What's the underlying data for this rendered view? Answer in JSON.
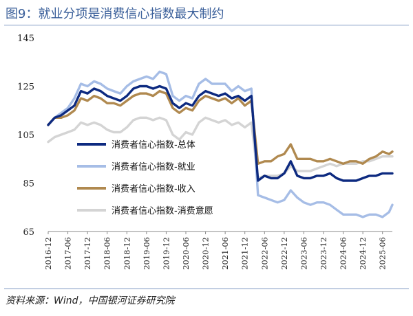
{
  "title": "图9：就业分项是消费信心指数最大制约",
  "source": "资料来源：Wind，中国银河证券研究院",
  "chart_data": {
    "type": "line",
    "ylim": [
      65,
      145
    ],
    "yticks": [
      65,
      85,
      105,
      125,
      145
    ],
    "xlim": [
      "2016-12",
      "2025-09"
    ],
    "xticks": [
      "2016-12",
      "2017-06",
      "2017-12",
      "2018-06",
      "2018-12",
      "2019-06",
      "2019-12",
      "2020-06",
      "2020-12",
      "2021-06",
      "2021-12",
      "2022-06",
      "2022-12",
      "2023-06",
      "2023-12",
      "2024-06",
      "2024-12",
      "2025-06"
    ],
    "grid": false,
    "legend_position": "center-left",
    "series": [
      {
        "name": "消费者信心指数-总体",
        "color": "#0d2a80",
        "points": [
          [
            "2016-12",
            109
          ],
          [
            "2017-02",
            112
          ],
          [
            "2017-04",
            113
          ],
          [
            "2017-06",
            115
          ],
          [
            "2017-08",
            117
          ],
          [
            "2017-10",
            123
          ],
          [
            "2017-12",
            122
          ],
          [
            "2018-02",
            124
          ],
          [
            "2018-04",
            123
          ],
          [
            "2018-06",
            121
          ],
          [
            "2018-08",
            120
          ],
          [
            "2018-10",
            119
          ],
          [
            "2018-12",
            121
          ],
          [
            "2019-02",
            124
          ],
          [
            "2019-04",
            125
          ],
          [
            "2019-06",
            125
          ],
          [
            "2019-08",
            124
          ],
          [
            "2019-10",
            125
          ],
          [
            "2019-12",
            124
          ],
          [
            "2020-02",
            118
          ],
          [
            "2020-04",
            116
          ],
          [
            "2020-06",
            118
          ],
          [
            "2020-08",
            117
          ],
          [
            "2020-10",
            121
          ],
          [
            "2020-12",
            123
          ],
          [
            "2021-02",
            122
          ],
          [
            "2021-04",
            121
          ],
          [
            "2021-06",
            122
          ],
          [
            "2021-08",
            120
          ],
          [
            "2021-10",
            121
          ],
          [
            "2021-12",
            119
          ],
          [
            "2022-02",
            121
          ],
          [
            "2022-04",
            86
          ],
          [
            "2022-06",
            88
          ],
          [
            "2022-08",
            87
          ],
          [
            "2022-10",
            87
          ],
          [
            "2022-12",
            89
          ],
          [
            "2023-02",
            94
          ],
          [
            "2023-04",
            88
          ],
          [
            "2023-06",
            87
          ],
          [
            "2023-08",
            87
          ],
          [
            "2023-10",
            88
          ],
          [
            "2023-12",
            88
          ],
          [
            "2024-02",
            89
          ],
          [
            "2024-04",
            87
          ],
          [
            "2024-06",
            86
          ],
          [
            "2024-08",
            86
          ],
          [
            "2024-10",
            86
          ],
          [
            "2024-12",
            87
          ],
          [
            "2025-02",
            88
          ],
          [
            "2025-04",
            88
          ],
          [
            "2025-06",
            89
          ],
          [
            "2025-09",
            89
          ]
        ]
      },
      {
        "name": "消费者信心指数-就业",
        "color": "#a6bde6",
        "points": [
          [
            "2016-12",
            109
          ],
          [
            "2017-02",
            112
          ],
          [
            "2017-04",
            114
          ],
          [
            "2017-06",
            116
          ],
          [
            "2017-08",
            120
          ],
          [
            "2017-10",
            126
          ],
          [
            "2017-12",
            125
          ],
          [
            "2018-02",
            127
          ],
          [
            "2018-04",
            126
          ],
          [
            "2018-06",
            124
          ],
          [
            "2018-08",
            123
          ],
          [
            "2018-10",
            122
          ],
          [
            "2018-12",
            125
          ],
          [
            "2019-02",
            127
          ],
          [
            "2019-04",
            128
          ],
          [
            "2019-06",
            129
          ],
          [
            "2019-08",
            128
          ],
          [
            "2019-10",
            131
          ],
          [
            "2019-12",
            130
          ],
          [
            "2020-02",
            121
          ],
          [
            "2020-04",
            119
          ],
          [
            "2020-06",
            121
          ],
          [
            "2020-08",
            120
          ],
          [
            "2020-10",
            126
          ],
          [
            "2020-12",
            128
          ],
          [
            "2021-02",
            126
          ],
          [
            "2021-04",
            126
          ],
          [
            "2021-06",
            126
          ],
          [
            "2021-08",
            123
          ],
          [
            "2021-10",
            125
          ],
          [
            "2021-12",
            123
          ],
          [
            "2022-02",
            124
          ],
          [
            "2022-04",
            80
          ],
          [
            "2022-06",
            79
          ],
          [
            "2022-08",
            78
          ],
          [
            "2022-10",
            77
          ],
          [
            "2022-12",
            78
          ],
          [
            "2023-02",
            82
          ],
          [
            "2023-04",
            79
          ],
          [
            "2023-06",
            77
          ],
          [
            "2023-08",
            76
          ],
          [
            "2023-10",
            77
          ],
          [
            "2023-12",
            77
          ],
          [
            "2024-02",
            76
          ],
          [
            "2024-04",
            74
          ],
          [
            "2024-06",
            72
          ],
          [
            "2024-08",
            72
          ],
          [
            "2024-10",
            72
          ],
          [
            "2024-12",
            71
          ],
          [
            "2025-02",
            72
          ],
          [
            "2025-04",
            72
          ],
          [
            "2025-06",
            71
          ],
          [
            "2025-08",
            73
          ],
          [
            "2025-09",
            76
          ]
        ]
      },
      {
        "name": "消费者信心指数-收入",
        "color": "#b0894f",
        "points": [
          [
            "2016-12",
            109
          ],
          [
            "2017-02",
            112
          ],
          [
            "2017-04",
            112
          ],
          [
            "2017-06",
            113
          ],
          [
            "2017-08",
            115
          ],
          [
            "2017-10",
            120
          ],
          [
            "2017-12",
            119
          ],
          [
            "2018-02",
            121
          ],
          [
            "2018-04",
            120
          ],
          [
            "2018-06",
            118
          ],
          [
            "2018-08",
            118
          ],
          [
            "2018-10",
            117
          ],
          [
            "2018-12",
            119
          ],
          [
            "2019-02",
            121
          ],
          [
            "2019-04",
            122
          ],
          [
            "2019-06",
            122
          ],
          [
            "2019-08",
            121
          ],
          [
            "2019-10",
            123
          ],
          [
            "2019-12",
            122
          ],
          [
            "2020-02",
            116
          ],
          [
            "2020-04",
            114
          ],
          [
            "2020-06",
            116
          ],
          [
            "2020-08",
            115
          ],
          [
            "2020-10",
            119
          ],
          [
            "2020-12",
            121
          ],
          [
            "2021-02",
            120
          ],
          [
            "2021-04",
            119
          ],
          [
            "2021-06",
            120
          ],
          [
            "2021-08",
            118
          ],
          [
            "2021-10",
            120
          ],
          [
            "2021-12",
            117
          ],
          [
            "2022-02",
            119
          ],
          [
            "2022-04",
            93
          ],
          [
            "2022-06",
            94
          ],
          [
            "2022-08",
            94
          ],
          [
            "2022-10",
            96
          ],
          [
            "2022-12",
            97
          ],
          [
            "2023-02",
            101
          ],
          [
            "2023-04",
            95
          ],
          [
            "2023-06",
            95
          ],
          [
            "2023-08",
            95
          ],
          [
            "2023-10",
            94
          ],
          [
            "2023-12",
            94
          ],
          [
            "2024-02",
            95
          ],
          [
            "2024-04",
            94
          ],
          [
            "2024-06",
            93
          ],
          [
            "2024-08",
            94
          ],
          [
            "2024-10",
            94
          ],
          [
            "2024-12",
            93
          ],
          [
            "2025-02",
            95
          ],
          [
            "2025-04",
            96
          ],
          [
            "2025-06",
            98
          ],
          [
            "2025-08",
            97
          ],
          [
            "2025-09",
            98
          ]
        ]
      },
      {
        "name": "消费者信心指数-消费意愿",
        "color": "#d4d4d4",
        "points": [
          [
            "2016-12",
            102
          ],
          [
            "2017-02",
            104
          ],
          [
            "2017-04",
            105
          ],
          [
            "2017-06",
            106
          ],
          [
            "2017-08",
            107
          ],
          [
            "2017-10",
            110
          ],
          [
            "2017-12",
            109
          ],
          [
            "2018-02",
            110
          ],
          [
            "2018-04",
            109
          ],
          [
            "2018-06",
            107
          ],
          [
            "2018-08",
            106
          ],
          [
            "2018-10",
            106
          ],
          [
            "2018-12",
            108
          ],
          [
            "2019-02",
            111
          ],
          [
            "2019-04",
            112
          ],
          [
            "2019-06",
            112
          ],
          [
            "2019-08",
            111
          ],
          [
            "2019-10",
            112
          ],
          [
            "2019-12",
            111
          ],
          [
            "2020-02",
            105
          ],
          [
            "2020-04",
            103
          ],
          [
            "2020-06",
            106
          ],
          [
            "2020-08",
            105
          ],
          [
            "2020-10",
            110
          ],
          [
            "2020-12",
            112
          ],
          [
            "2021-02",
            111
          ],
          [
            "2021-04",
            110
          ],
          [
            "2021-06",
            111
          ],
          [
            "2021-08",
            109
          ],
          [
            "2021-10",
            110
          ],
          [
            "2021-12",
            108
          ],
          [
            "2022-02",
            110
          ],
          [
            "2022-04",
            87
          ],
          [
            "2022-06",
            88
          ],
          [
            "2022-08",
            88
          ],
          [
            "2022-10",
            88
          ],
          [
            "2022-12",
            89
          ],
          [
            "2023-02",
            92
          ],
          [
            "2023-04",
            90
          ],
          [
            "2023-06",
            90
          ],
          [
            "2023-08",
            90
          ],
          [
            "2023-10",
            91
          ],
          [
            "2023-12",
            92
          ],
          [
            "2024-02",
            93
          ],
          [
            "2024-04",
            92
          ],
          [
            "2024-06",
            93
          ],
          [
            "2024-08",
            93
          ],
          [
            "2024-10",
            93
          ],
          [
            "2024-12",
            94
          ],
          [
            "2025-02",
            94
          ],
          [
            "2025-04",
            95
          ],
          [
            "2025-06",
            96
          ],
          [
            "2025-08",
            96
          ],
          [
            "2025-09",
            96
          ]
        ]
      }
    ]
  }
}
